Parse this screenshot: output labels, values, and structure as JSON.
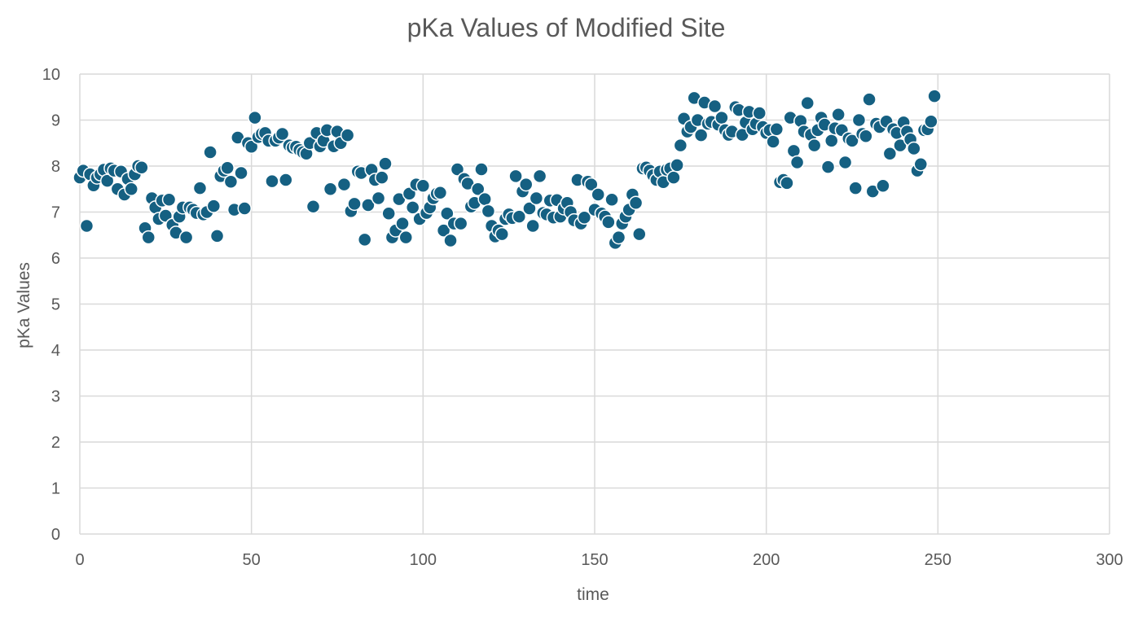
{
  "chart_data": {
    "type": "scatter",
    "title": "pKa Values of Modified Site",
    "xlabel": "time",
    "ylabel": "pKa Values",
    "xlim": [
      0,
      300
    ],
    "ylim": [
      0,
      10
    ],
    "x_ticks": [
      0,
      50,
      100,
      150,
      200,
      250,
      300
    ],
    "y_ticks": [
      0,
      1,
      2,
      3,
      4,
      5,
      6,
      7,
      8,
      9,
      10
    ],
    "grid": true,
    "legend": "none",
    "marker_color": "#156082",
    "points": [
      [
        0,
        7.75
      ],
      [
        1,
        7.9
      ],
      [
        2,
        6.7
      ],
      [
        3,
        7.82
      ],
      [
        4,
        7.58
      ],
      [
        5,
        7.75
      ],
      [
        6,
        7.82
      ],
      [
        7,
        7.92
      ],
      [
        8,
        7.68
      ],
      [
        9,
        7.95
      ],
      [
        10,
        7.9
      ],
      [
        11,
        7.5
      ],
      [
        12,
        7.88
      ],
      [
        13,
        7.38
      ],
      [
        14,
        7.72
      ],
      [
        15,
        7.5
      ],
      [
        16,
        7.82
      ],
      [
        17,
        8.0
      ],
      [
        18,
        7.97
      ],
      [
        19,
        6.65
      ],
      [
        20,
        6.45
      ],
      [
        21,
        7.3
      ],
      [
        22,
        7.1
      ],
      [
        23,
        6.85
      ],
      [
        24,
        7.25
      ],
      [
        25,
        6.92
      ],
      [
        26,
        7.27
      ],
      [
        27,
        6.72
      ],
      [
        28,
        6.55
      ],
      [
        29,
        6.9
      ],
      [
        30,
        7.1
      ],
      [
        31,
        6.45
      ],
      [
        32,
        7.1
      ],
      [
        33,
        7.05
      ],
      [
        34,
        6.98
      ],
      [
        35,
        7.52
      ],
      [
        36,
        6.95
      ],
      [
        37,
        7.0
      ],
      [
        38,
        8.3
      ],
      [
        39,
        7.13
      ],
      [
        40,
        6.48
      ],
      [
        41,
        7.78
      ],
      [
        42,
        7.9
      ],
      [
        43,
        7.96
      ],
      [
        44,
        7.66
      ],
      [
        45,
        7.05
      ],
      [
        46,
        8.62
      ],
      [
        47,
        7.85
      ],
      [
        48,
        7.08
      ],
      [
        49,
        8.5
      ],
      [
        50,
        8.42
      ],
      [
        51,
        9.05
      ],
      [
        52,
        8.63
      ],
      [
        53,
        8.7
      ],
      [
        54,
        8.72
      ],
      [
        55,
        8.55
      ],
      [
        56,
        7.67
      ],
      [
        57,
        8.55
      ],
      [
        58,
        8.62
      ],
      [
        59,
        8.7
      ],
      [
        60,
        7.7
      ],
      [
        61,
        8.45
      ],
      [
        62,
        8.4
      ],
      [
        63,
        8.42
      ],
      [
        64,
        8.35
      ],
      [
        65,
        8.3
      ],
      [
        66,
        8.27
      ],
      [
        67,
        8.5
      ],
      [
        68,
        7.12
      ],
      [
        69,
        8.72
      ],
      [
        70,
        8.43
      ],
      [
        71,
        8.55
      ],
      [
        72,
        8.78
      ],
      [
        73,
        7.5
      ],
      [
        74,
        8.43
      ],
      [
        75,
        8.75
      ],
      [
        76,
        8.5
      ],
      [
        77,
        7.6
      ],
      [
        78,
        8.67
      ],
      [
        79,
        7.02
      ],
      [
        80,
        7.18
      ],
      [
        81,
        7.88
      ],
      [
        82,
        7.85
      ],
      [
        83,
        6.4
      ],
      [
        84,
        7.15
      ],
      [
        85,
        7.92
      ],
      [
        86,
        7.7
      ],
      [
        87,
        7.3
      ],
      [
        88,
        7.75
      ],
      [
        89,
        8.05
      ],
      [
        90,
        6.97
      ],
      [
        91,
        6.45
      ],
      [
        92,
        6.6
      ],
      [
        93,
        7.28
      ],
      [
        94,
        6.75
      ],
      [
        95,
        6.45
      ],
      [
        96,
        7.4
      ],
      [
        97,
        7.1
      ],
      [
        98,
        7.6
      ],
      [
        99,
        6.85
      ],
      [
        100,
        7.57
      ],
      [
        101,
        6.98
      ],
      [
        102,
        7.1
      ],
      [
        103,
        7.3
      ],
      [
        104,
        7.4
      ],
      [
        105,
        7.42
      ],
      [
        106,
        6.6
      ],
      [
        107,
        6.97
      ],
      [
        108,
        6.38
      ],
      [
        109,
        6.75
      ],
      [
        110,
        7.93
      ],
      [
        111,
        6.75
      ],
      [
        112,
        7.72
      ],
      [
        113,
        7.62
      ],
      [
        114,
        7.12
      ],
      [
        115,
        7.2
      ],
      [
        116,
        7.5
      ],
      [
        117,
        7.93
      ],
      [
        118,
        7.28
      ],
      [
        119,
        7.02
      ],
      [
        120,
        6.7
      ],
      [
        121,
        6.47
      ],
      [
        122,
        6.6
      ],
      [
        123,
        6.52
      ],
      [
        124,
        6.85
      ],
      [
        125,
        6.95
      ],
      [
        126,
        6.87
      ],
      [
        127,
        7.78
      ],
      [
        128,
        6.9
      ],
      [
        129,
        7.45
      ],
      [
        130,
        7.6
      ],
      [
        131,
        7.08
      ],
      [
        132,
        6.7
      ],
      [
        133,
        7.3
      ],
      [
        134,
        7.78
      ],
      [
        135,
        6.98
      ],
      [
        136,
        6.95
      ],
      [
        137,
        7.25
      ],
      [
        138,
        6.88
      ],
      [
        139,
        7.26
      ],
      [
        140,
        6.9
      ],
      [
        141,
        7.08
      ],
      [
        142,
        7.2
      ],
      [
        143,
        7.0
      ],
      [
        144,
        6.82
      ],
      [
        145,
        7.7
      ],
      [
        146,
        6.75
      ],
      [
        147,
        6.88
      ],
      [
        148,
        7.66
      ],
      [
        149,
        7.6
      ],
      [
        150,
        7.05
      ],
      [
        151,
        7.38
      ],
      [
        152,
        6.97
      ],
      [
        153,
        6.9
      ],
      [
        154,
        6.78
      ],
      [
        155,
        7.27
      ],
      [
        156,
        6.33
      ],
      [
        157,
        6.45
      ],
      [
        158,
        6.75
      ],
      [
        159,
        6.9
      ],
      [
        160,
        7.05
      ],
      [
        161,
        7.38
      ],
      [
        162,
        7.2
      ],
      [
        163,
        6.52
      ],
      [
        164,
        7.95
      ],
      [
        165,
        7.97
      ],
      [
        166,
        7.9
      ],
      [
        167,
        7.8
      ],
      [
        168,
        7.7
      ],
      [
        169,
        7.88
      ],
      [
        170,
        7.65
      ],
      [
        171,
        7.92
      ],
      [
        172,
        7.95
      ],
      [
        173,
        7.75
      ],
      [
        174,
        8.02
      ],
      [
        175,
        8.45
      ],
      [
        176,
        9.03
      ],
      [
        177,
        8.75
      ],
      [
        178,
        8.85
      ],
      [
        179,
        9.48
      ],
      [
        180,
        9.0
      ],
      [
        181,
        8.67
      ],
      [
        182,
        9.38
      ],
      [
        183,
        8.92
      ],
      [
        184,
        8.96
      ],
      [
        185,
        9.3
      ],
      [
        186,
        8.9
      ],
      [
        187,
        9.05
      ],
      [
        188,
        8.78
      ],
      [
        189,
        8.68
      ],
      [
        190,
        8.75
      ],
      [
        191,
        9.28
      ],
      [
        192,
        9.22
      ],
      [
        193,
        8.68
      ],
      [
        194,
        8.95
      ],
      [
        195,
        9.18
      ],
      [
        196,
        8.8
      ],
      [
        197,
        8.92
      ],
      [
        198,
        9.15
      ],
      [
        199,
        8.85
      ],
      [
        200,
        8.72
      ],
      [
        201,
        8.78
      ],
      [
        202,
        8.53
      ],
      [
        203,
        8.8
      ],
      [
        204,
        7.65
      ],
      [
        205,
        7.7
      ],
      [
        206,
        7.63
      ],
      [
        207,
        9.05
      ],
      [
        208,
        8.33
      ],
      [
        209,
        8.08
      ],
      [
        210,
        8.98
      ],
      [
        211,
        8.75
      ],
      [
        212,
        9.37
      ],
      [
        213,
        8.68
      ],
      [
        214,
        8.45
      ],
      [
        215,
        8.78
      ],
      [
        216,
        9.05
      ],
      [
        217,
        8.9
      ],
      [
        218,
        7.98
      ],
      [
        219,
        8.55
      ],
      [
        220,
        8.82
      ],
      [
        221,
        9.12
      ],
      [
        222,
        8.78
      ],
      [
        223,
        8.08
      ],
      [
        224,
        8.6
      ],
      [
        225,
        8.55
      ],
      [
        226,
        7.52
      ],
      [
        227,
        9.0
      ],
      [
        228,
        8.7
      ],
      [
        229,
        8.65
      ],
      [
        230,
        9.45
      ],
      [
        231,
        7.45
      ],
      [
        232,
        8.92
      ],
      [
        233,
        8.85
      ],
      [
        234,
        7.57
      ],
      [
        235,
        8.97
      ],
      [
        236,
        8.27
      ],
      [
        237,
        8.8
      ],
      [
        238,
        8.72
      ],
      [
        239,
        8.45
      ],
      [
        240,
        8.95
      ],
      [
        241,
        8.75
      ],
      [
        242,
        8.58
      ],
      [
        243,
        8.38
      ],
      [
        244,
        7.9
      ],
      [
        245,
        8.04
      ],
      [
        246,
        8.78
      ],
      [
        247,
        8.8
      ],
      [
        248,
        8.97
      ],
      [
        249,
        9.52
      ]
    ]
  }
}
